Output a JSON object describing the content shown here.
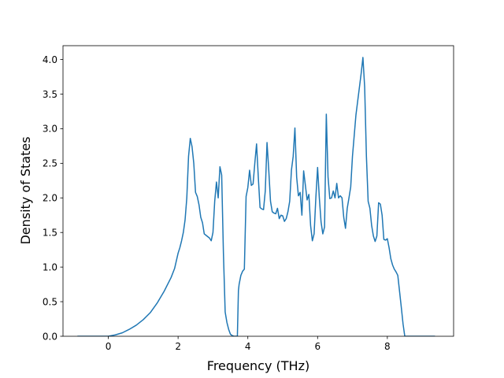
{
  "chart_data": {
    "type": "line",
    "title": "",
    "xlabel": "Frequency (THz)",
    "ylabel": "Density of States",
    "xlim": [
      -1.3,
      9.9
    ],
    "ylim": [
      0.0,
      4.2
    ],
    "x_ticks": [
      0,
      2,
      4,
      6,
      8
    ],
    "y_ticks": [
      0.0,
      0.5,
      1.0,
      1.5,
      2.0,
      2.5,
      3.0,
      3.5,
      4.0
    ],
    "x_tick_labels": [
      "0",
      "2",
      "4",
      "6",
      "8"
    ],
    "y_tick_labels": [
      "0.0",
      "0.5",
      "1.0",
      "1.5",
      "2.0",
      "2.5",
      "3.0",
      "3.5",
      "4.0"
    ],
    "grid": false,
    "legend": "none",
    "color": "#1f77b4",
    "series": [
      {
        "x": [
          -0.87,
          -0.4,
          0.0,
          0.2,
          0.4,
          0.6,
          0.8,
          1.0,
          1.2,
          1.4,
          1.6,
          1.8,
          1.9,
          2.0,
          2.05,
          2.1,
          2.15,
          2.2,
          2.25,
          2.3,
          2.35,
          2.4,
          2.45,
          2.5,
          2.55,
          2.6,
          2.65,
          2.7,
          2.75,
          2.8,
          2.85,
          2.9,
          2.95,
          3.0,
          3.05,
          3.1,
          3.15,
          3.2,
          3.25,
          3.3,
          3.35,
          3.4,
          3.45,
          3.5,
          3.55,
          3.6,
          3.65,
          3.7,
          3.73,
          3.75,
          3.8,
          3.85,
          3.9,
          3.95,
          4.0,
          4.05,
          4.1,
          4.15,
          4.2,
          4.25,
          4.3,
          4.35,
          4.4,
          4.45,
          4.5,
          4.55,
          4.6,
          4.65,
          4.7,
          4.75,
          4.8,
          4.85,
          4.9,
          4.95,
          5.0,
          5.05,
          5.1,
          5.15,
          5.2,
          5.25,
          5.3,
          5.35,
          5.4,
          5.45,
          5.5,
          5.55,
          5.6,
          5.65,
          5.7,
          5.75,
          5.8,
          5.85,
          5.9,
          5.95,
          6.0,
          6.05,
          6.1,
          6.15,
          6.2,
          6.25,
          6.3,
          6.35,
          6.4,
          6.45,
          6.5,
          6.55,
          6.6,
          6.65,
          6.7,
          6.75,
          6.8,
          6.85,
          6.9,
          6.95,
          7.0,
          7.05,
          7.1,
          7.15,
          7.2,
          7.25,
          7.3,
          7.35,
          7.4,
          7.45,
          7.5,
          7.55,
          7.6,
          7.65,
          7.7,
          7.75,
          7.8,
          7.85,
          7.9,
          7.95,
          8.0,
          8.05,
          8.1,
          8.15,
          8.2,
          8.25,
          8.3,
          8.35,
          8.4,
          8.45,
          8.5,
          8.6,
          9.0,
          9.35
        ],
        "y": [
          0.0,
          0.0,
          0.0,
          0.02,
          0.05,
          0.1,
          0.16,
          0.24,
          0.34,
          0.48,
          0.65,
          0.85,
          0.98,
          1.2,
          1.28,
          1.38,
          1.5,
          1.68,
          2.0,
          2.6,
          2.86,
          2.74,
          2.5,
          2.08,
          2.02,
          1.9,
          1.72,
          1.64,
          1.48,
          1.46,
          1.44,
          1.42,
          1.38,
          1.5,
          1.95,
          2.23,
          2.0,
          2.45,
          2.33,
          1.2,
          0.35,
          0.2,
          0.1,
          0.03,
          0.01,
          0.0,
          0.0,
          0.0,
          0.66,
          0.75,
          0.88,
          0.94,
          0.97,
          2.02,
          2.15,
          2.4,
          2.18,
          2.2,
          2.5,
          2.78,
          2.3,
          1.86,
          1.84,
          1.83,
          2.1,
          2.8,
          2.4,
          1.95,
          1.8,
          1.78,
          1.77,
          1.85,
          1.7,
          1.75,
          1.74,
          1.66,
          1.7,
          1.8,
          1.95,
          2.4,
          2.6,
          3.01,
          2.3,
          2.03,
          2.08,
          1.75,
          2.39,
          2.18,
          1.97,
          2.05,
          1.6,
          1.38,
          1.48,
          2.0,
          2.44,
          2.0,
          1.65,
          1.48,
          1.58,
          3.21,
          2.3,
          1.99,
          2.0,
          2.1,
          2.0,
          2.21,
          2.0,
          2.03,
          2.0,
          1.72,
          1.56,
          1.85,
          2.0,
          2.16,
          2.6,
          2.9,
          3.2,
          3.4,
          3.6,
          3.8,
          4.03,
          3.6,
          2.6,
          1.95,
          1.85,
          1.6,
          1.45,
          1.37,
          1.45,
          1.93,
          1.91,
          1.75,
          1.4,
          1.39,
          1.41,
          1.28,
          1.12,
          1.03,
          0.97,
          0.93,
          0.88,
          0.65,
          0.42,
          0.18,
          0.0,
          0.0,
          0.0,
          0.0
        ]
      }
    ]
  }
}
